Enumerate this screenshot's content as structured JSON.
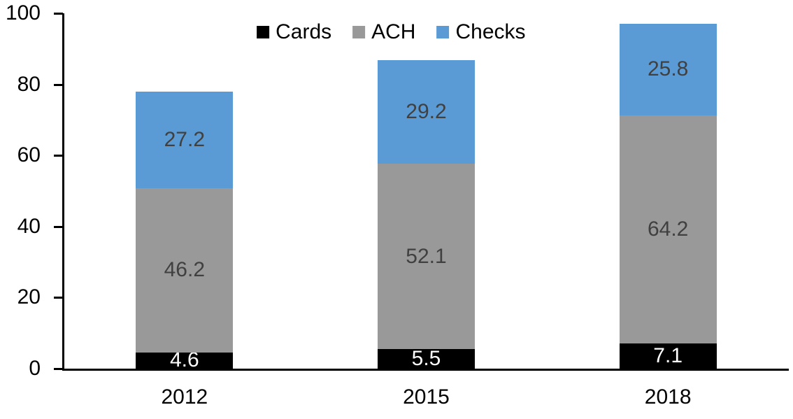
{
  "chart_data": {
    "type": "bar",
    "stacked": true,
    "title": "",
    "xlabel": "",
    "ylabel": "",
    "categories": [
      "2012",
      "2015",
      "2018"
    ],
    "series": [
      {
        "name": "Cards",
        "color": "#000000",
        "label_color": "#ffffff",
        "values": [
          4.6,
          5.5,
          7.1
        ]
      },
      {
        "name": "ACH",
        "color": "#999999",
        "label_color": "#404040",
        "values": [
          46.2,
          52.1,
          64.2
        ]
      },
      {
        "name": "Checks",
        "color": "#5b9bd5",
        "label_color": "#404040",
        "values": [
          27.2,
          29.2,
          25.8
        ]
      }
    ],
    "totals": [
      78.0,
      86.8,
      97.1
    ],
    "ylim": [
      0,
      100
    ],
    "y_ticks": [
      0,
      20,
      40,
      60,
      80,
      100
    ],
    "grid": false,
    "legend_position": "top-center",
    "axis_color": "#000000",
    "data_labels_shown": true
  }
}
